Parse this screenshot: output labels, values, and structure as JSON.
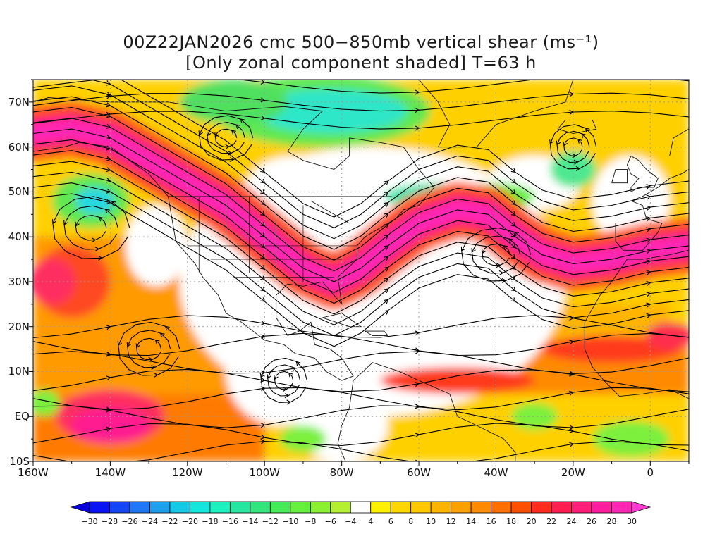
{
  "title": {
    "line1": "00Z22JAN2026 cmc 500−850mb vertical shear (ms⁻¹)",
    "line2": "[Only zonal component shaded] T=63 h"
  },
  "map": {
    "lat_labels": [
      "70N",
      "60N",
      "50N",
      "40N",
      "30N",
      "20N",
      "10N",
      "EQ",
      "10S"
    ],
    "lat_values": [
      70,
      60,
      50,
      40,
      30,
      20,
      10,
      0,
      -10
    ],
    "lon_labels": [
      "160W",
      "140W",
      "120W",
      "100W",
      "80W",
      "60W",
      "40W",
      "20W",
      "0"
    ],
    "lon_values": [
      -160,
      -140,
      -120,
      -100,
      -80,
      -60,
      -40,
      -20,
      0
    ],
    "extent": {
      "lon_min": -160,
      "lon_max": 10,
      "lat_min": -10,
      "lat_max": 75
    },
    "jet_axis": [
      [
        -160,
        63
      ],
      [
        -150,
        64
      ],
      [
        -140,
        62
      ],
      [
        -130,
        57
      ],
      [
        -120,
        52
      ],
      [
        -110,
        47
      ],
      [
        -100,
        40
      ],
      [
        -90,
        33
      ],
      [
        -82,
        30
      ],
      [
        -75,
        33
      ],
      [
        -68,
        38
      ],
      [
        -60,
        43
      ],
      [
        -50,
        46
      ],
      [
        -42,
        45
      ],
      [
        -35,
        40
      ],
      [
        -28,
        36
      ],
      [
        -20,
        34
      ],
      [
        -10,
        35
      ],
      [
        0,
        37
      ],
      [
        10,
        38
      ]
    ]
  },
  "colorbar": {
    "labels": [
      "-30",
      "-28",
      "-26",
      "-24",
      "-22",
      "-20",
      "-18",
      "-16",
      "-14",
      "-12",
      "-10",
      "-8",
      "-6",
      "-4",
      "4",
      "6",
      "8",
      "10",
      "12",
      "14",
      "16",
      "18",
      "20",
      "22",
      "24",
      "26",
      "28",
      "30"
    ],
    "colors": [
      "#0a14f0",
      "#1446f5",
      "#1e78f5",
      "#1ea0f0",
      "#14c8e6",
      "#14e6dc",
      "#1ef0c0",
      "#28e6a0",
      "#32e67d",
      "#46ec5a",
      "#64f03c",
      "#8cf032",
      "#b4f032",
      "#ffffff",
      "#fff000",
      "#ffd700",
      "#ffc800",
      "#ffb400",
      "#ffa000",
      "#ff8c00",
      "#ff7000",
      "#ff5000",
      "#ff2d1e",
      "#ff1e50",
      "#ff1e78",
      "#ff1ea0",
      "#ff28b4"
    ],
    "end_low": "#0a00dc",
    "end_high": "#ff3cd2"
  }
}
